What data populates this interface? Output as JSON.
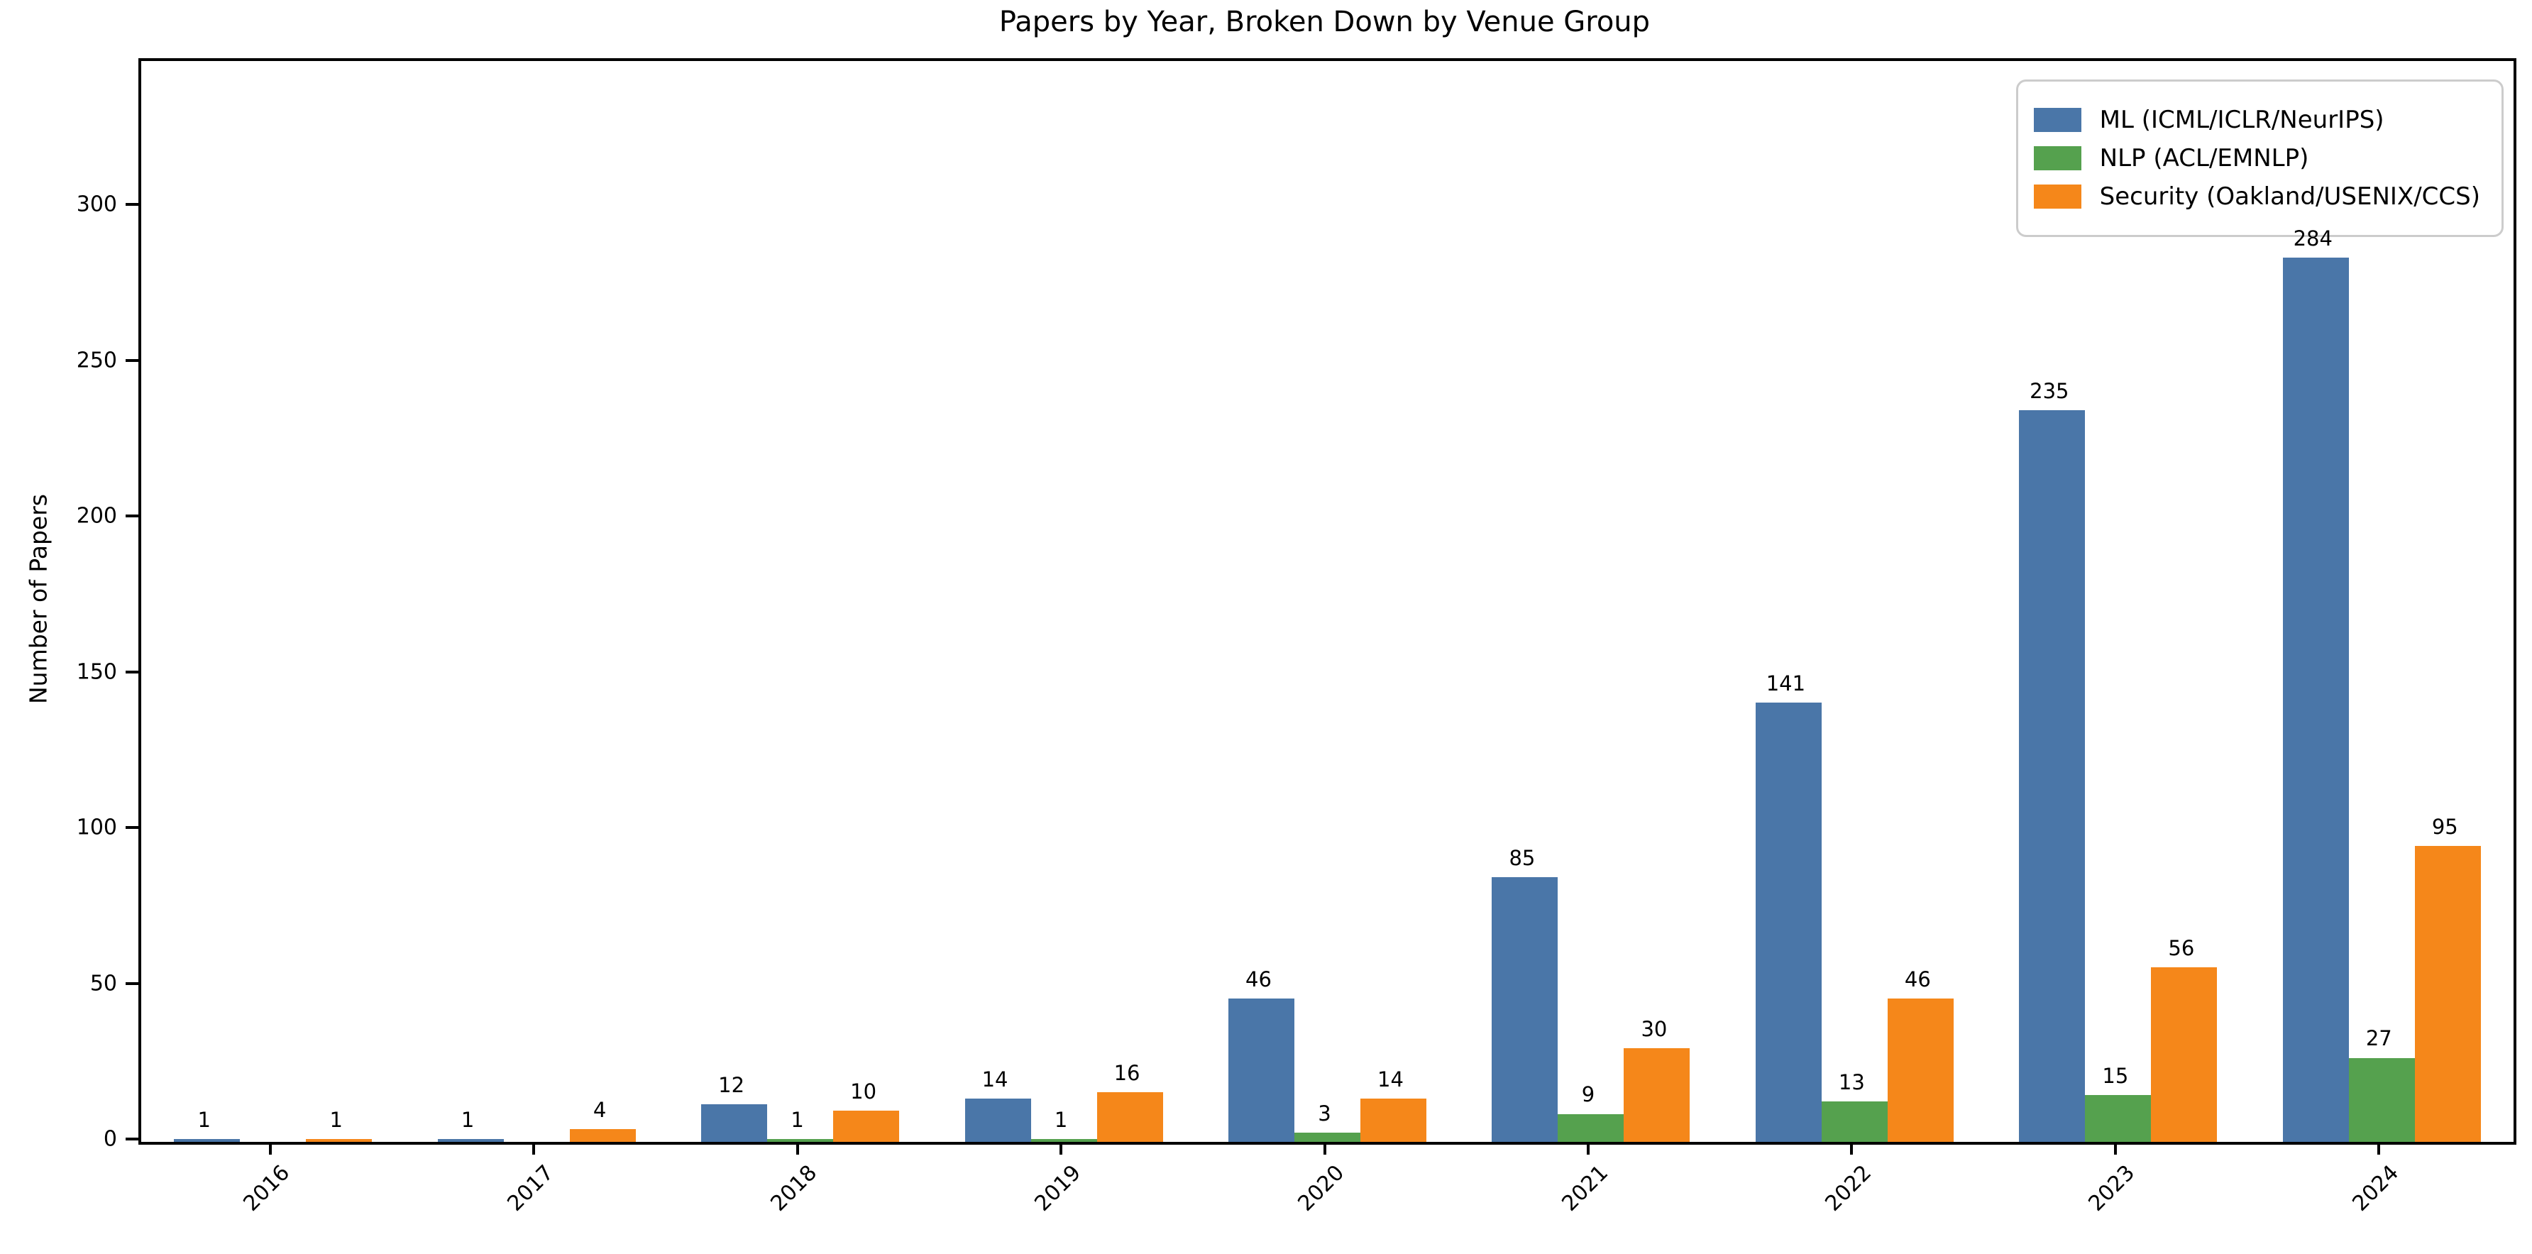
{
  "title": "Papers by Year, Broken Down by Venue Group",
  "y_axis_label": "Number of Papers",
  "chart_data": {
    "type": "bar",
    "title": "Papers by Year, Broken Down by Venue Group",
    "xlabel": "",
    "ylabel": "Number of Papers",
    "categories": [
      "2016",
      "2017",
      "2018",
      "2019",
      "2020",
      "2021",
      "2022",
      "2023",
      "2024"
    ],
    "series": [
      {
        "name": "ML (ICML/ICLR/NeurIPS)",
        "color": "#4A76A8",
        "values": [
          1,
          1,
          12,
          14,
          46,
          85,
          141,
          235,
          284
        ]
      },
      {
        "name": "NLP (ACL/EMNLP)",
        "color": "#55A14E",
        "values": [
          0,
          0,
          1,
          1,
          3,
          9,
          13,
          15,
          27
        ]
      },
      {
        "name": "Security (Oakland/USENIX/CCS)",
        "color": "#F5871A",
        "values": [
          1,
          4,
          10,
          16,
          14,
          30,
          46,
          56,
          95
        ]
      }
    ],
    "bar_value_labels_shown": true,
    "zero_values_unlabeled": true,
    "yticks": [
      0,
      50,
      100,
      150,
      200,
      250,
      300
    ],
    "ylim": [
      0,
      347
    ],
    "xtick_rotation_degrees": 45,
    "grid": false,
    "legend_position": "upper right",
    "colors": {
      "ml_blue": "#4A76A8",
      "nlp_green": "#55A14E",
      "security_orange": "#F5871A",
      "axis": "#000000",
      "legend_border": "#cccccc",
      "background": "#ffffff"
    }
  }
}
